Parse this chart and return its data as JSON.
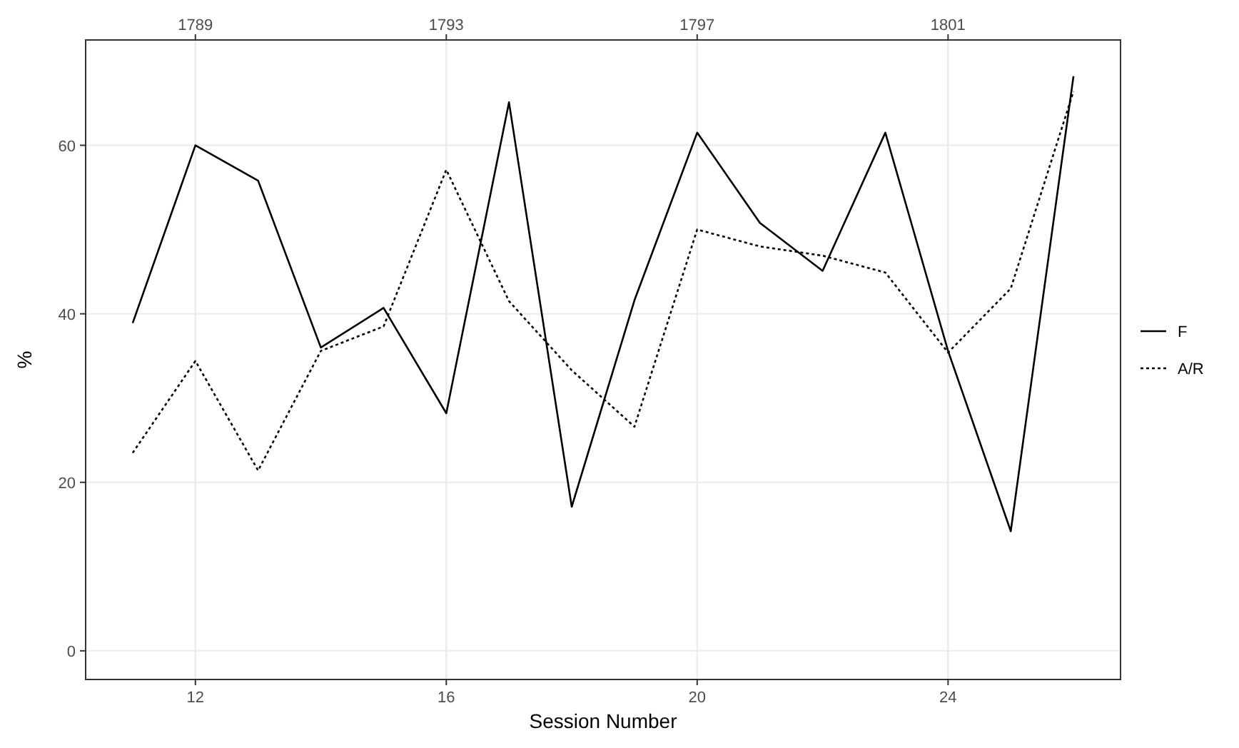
{
  "chart_data": {
    "type": "line",
    "xlabel": "Session Number",
    "ylabel": "%",
    "x": [
      11,
      12,
      13,
      14,
      15,
      16,
      17,
      18,
      19,
      20,
      21,
      22,
      23,
      24,
      25,
      26
    ],
    "xlim": [
      10.25,
      26.75
    ],
    "xticks": [
      12,
      16,
      20,
      24
    ],
    "x2lim": [
      1787.25,
      1803.75
    ],
    "x2ticks": [
      1789,
      1793,
      1797,
      1801
    ],
    "ylim": [
      -3.4,
      72.5
    ],
    "yticks": [
      0,
      20,
      40,
      60
    ],
    "grid": true,
    "legend": "right",
    "marker": "none",
    "series": [
      {
        "name": "F",
        "color": "#000000",
        "line_style": "solid",
        "values": [
          38.9,
          60,
          55.8,
          36,
          40.7,
          28.2,
          65.1,
          17.1,
          41.6,
          61.5,
          50.8,
          45.1,
          61.5,
          35.6,
          14.2,
          68.2
        ]
      },
      {
        "name": "A/R",
        "color": "#000000",
        "line_style": "dotted",
        "values": [
          23.5,
          34.4,
          21.4,
          35.6,
          38.5,
          57.1,
          41.5,
          33.3,
          26.6,
          50,
          48,
          46.9,
          44.9,
          35.4,
          43,
          66.4
        ]
      }
    ]
  }
}
